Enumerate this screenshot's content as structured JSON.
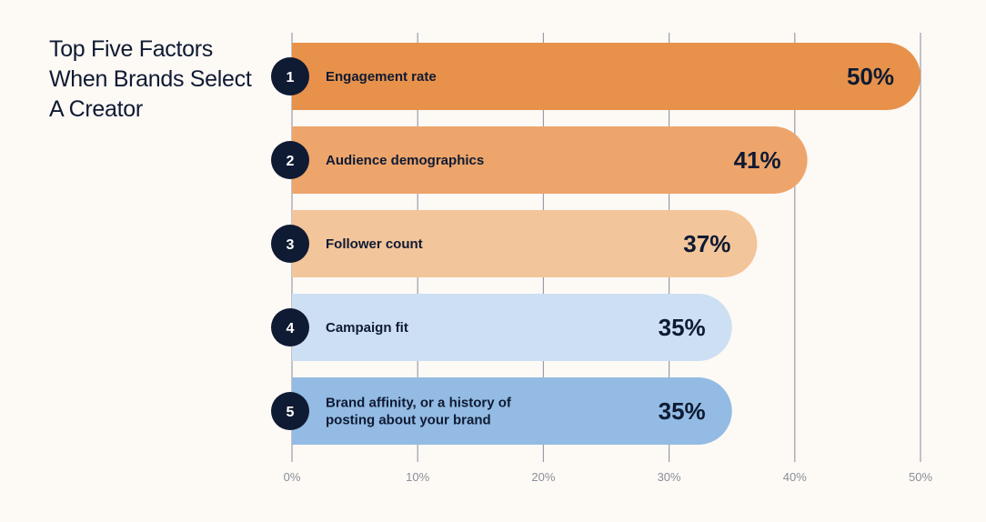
{
  "title": "Top Five Factors When Brands Select A Creator",
  "chart_data": {
    "type": "bar",
    "orientation": "horizontal",
    "title": "Top Five Factors When Brands Select A Creator",
    "categories": [
      "Engagement rate",
      "Audience demographics",
      "Follower count",
      "Campaign fit",
      "Brand affinity, or a history of posting about your brand"
    ],
    "category_lines": [
      [
        "Engagement rate"
      ],
      [
        "Audience demographics"
      ],
      [
        "Follower count"
      ],
      [
        "Campaign fit"
      ],
      [
        "Brand affinity, or a history of",
        "posting about your brand"
      ]
    ],
    "ranks": [
      "1",
      "2",
      "3",
      "4",
      "5"
    ],
    "values": [
      50,
      41,
      37,
      35,
      35
    ],
    "value_labels": [
      "50%",
      "41%",
      "37%",
      "35%",
      "35%"
    ],
    "colors": [
      "#e8914a",
      "#eda56b",
      "#f3c59a",
      "#cddff3",
      "#93bbe3"
    ],
    "rank_badge_color": "#0f1a33",
    "gridline_color": "#9a9ea6",
    "xlim": [
      0,
      50
    ],
    "xticks": [
      0,
      10,
      20,
      30,
      40,
      50
    ],
    "xtick_labels": [
      "0%",
      "10%",
      "20%",
      "30%",
      "40%",
      "50%"
    ],
    "grid": true,
    "legend": "none"
  }
}
